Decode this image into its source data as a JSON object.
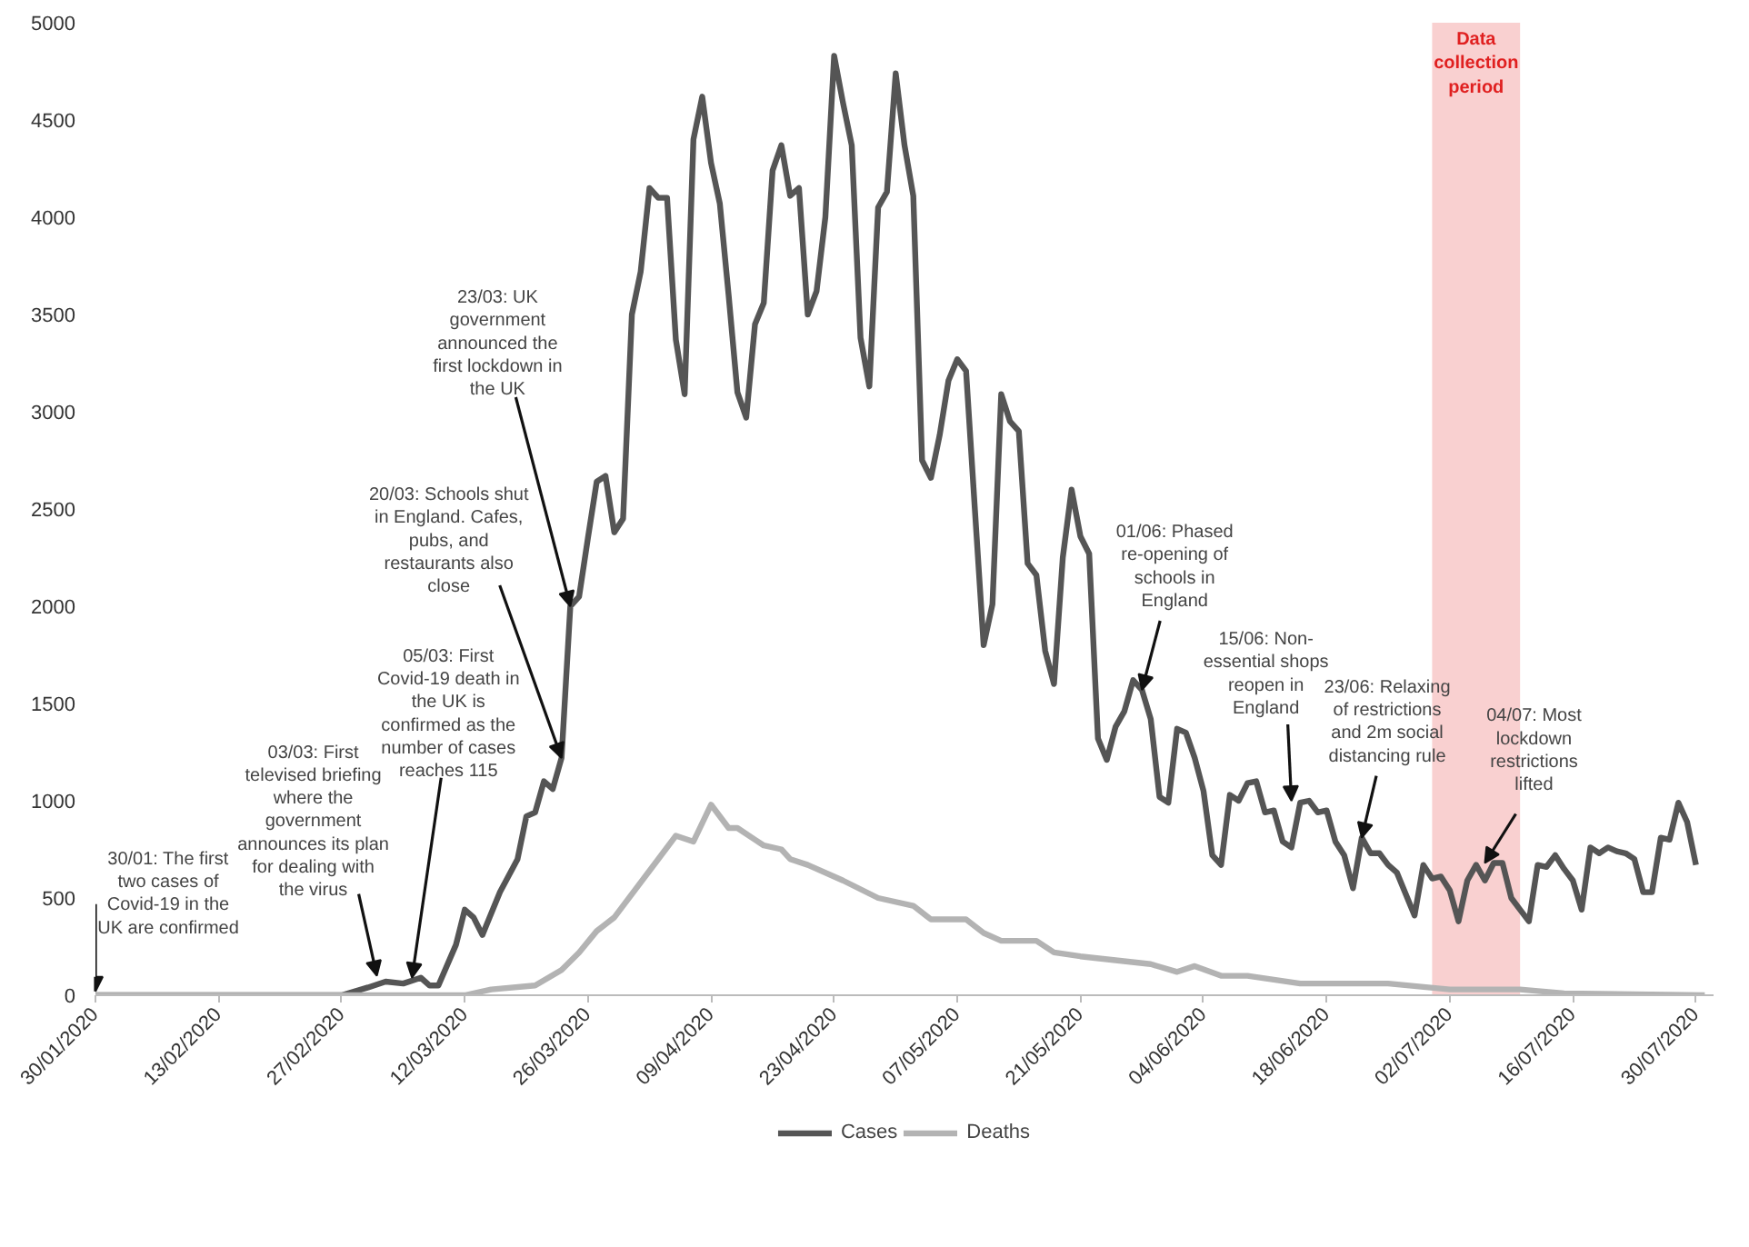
{
  "chart_data": {
    "type": "line",
    "xlim": [
      "2020-01-30",
      "2020-08-01"
    ],
    "ylim": [
      0,
      5000
    ],
    "xticks": [
      {
        "value": "2020-01-30",
        "label": "30/01/2020"
      },
      {
        "value": "2020-02-13",
        "label": "13/02/2020"
      },
      {
        "value": "2020-02-27",
        "label": "27/02/2020"
      },
      {
        "value": "2020-03-12",
        "label": "12/03/2020"
      },
      {
        "value": "2020-03-26",
        "label": "26/03/2020"
      },
      {
        "value": "2020-04-09",
        "label": "09/04/2020"
      },
      {
        "value": "2020-04-23",
        "label": "23/04/2020"
      },
      {
        "value": "2020-05-07",
        "label": "07/05/2020"
      },
      {
        "value": "2020-05-21",
        "label": "21/05/2020"
      },
      {
        "value": "2020-06-04",
        "label": "04/06/2020"
      },
      {
        "value": "2020-06-18",
        "label": "18/06/2020"
      },
      {
        "value": "2020-07-02",
        "label": "02/07/2020"
      },
      {
        "value": "2020-07-16",
        "label": "16/07/2020"
      },
      {
        "value": "2020-07-30",
        "label": "30/07/2020"
      }
    ],
    "yticks": [
      0,
      500,
      1000,
      1500,
      2000,
      2500,
      3000,
      3500,
      4000,
      4500,
      5000
    ],
    "grid": false,
    "legend": "bottom",
    "marker": "none",
    "line_style": "solid",
    "series": [
      {
        "name": "Cases",
        "color": "#555555",
        "x": [
          "2020-01-30",
          "2020-02-27",
          "2020-03-01",
          "2020-03-03",
          "2020-03-05",
          "2020-03-07",
          "2020-03-08",
          "2020-03-09",
          "2020-03-11",
          "2020-03-12",
          "2020-03-13",
          "2020-03-14",
          "2020-03-16",
          "2020-03-18",
          "2020-03-19",
          "2020-03-20",
          "2020-03-21",
          "2020-03-22",
          "2020-03-23",
          "2020-03-24",
          "2020-03-25",
          "2020-03-26",
          "2020-03-27",
          "2020-03-28",
          "2020-03-29",
          "2020-03-30",
          "2020-03-31",
          "2020-04-01",
          "2020-04-02",
          "2020-04-03",
          "2020-04-04",
          "2020-04-05",
          "2020-04-06",
          "2020-04-07",
          "2020-04-08",
          "2020-04-09",
          "2020-04-10",
          "2020-04-11",
          "2020-04-12",
          "2020-04-13",
          "2020-04-14",
          "2020-04-15",
          "2020-04-16",
          "2020-04-17",
          "2020-04-18",
          "2020-04-19",
          "2020-04-20",
          "2020-04-21",
          "2020-04-22",
          "2020-04-23",
          "2020-04-24",
          "2020-04-25",
          "2020-04-26",
          "2020-04-27",
          "2020-04-28",
          "2020-04-29",
          "2020-04-30",
          "2020-05-01",
          "2020-05-02",
          "2020-05-03",
          "2020-05-04",
          "2020-05-05",
          "2020-05-06",
          "2020-05-07",
          "2020-05-08",
          "2020-05-09",
          "2020-05-10",
          "2020-05-11",
          "2020-05-12",
          "2020-05-13",
          "2020-05-14",
          "2020-05-15",
          "2020-05-16",
          "2020-05-17",
          "2020-05-18",
          "2020-05-19",
          "2020-05-20",
          "2020-05-21",
          "2020-05-22",
          "2020-05-23",
          "2020-05-24",
          "2020-05-25",
          "2020-05-26",
          "2020-05-27",
          "2020-05-28",
          "2020-05-29",
          "2020-05-30",
          "2020-05-31",
          "2020-06-01",
          "2020-06-02",
          "2020-06-03",
          "2020-06-04",
          "2020-06-05",
          "2020-06-06",
          "2020-06-07",
          "2020-06-08",
          "2020-06-09",
          "2020-06-10",
          "2020-06-11",
          "2020-06-12",
          "2020-06-13",
          "2020-06-14",
          "2020-06-15",
          "2020-06-16",
          "2020-06-17",
          "2020-06-18",
          "2020-06-19",
          "2020-06-20",
          "2020-06-21",
          "2020-06-22",
          "2020-06-23",
          "2020-06-24",
          "2020-06-25",
          "2020-06-26",
          "2020-06-27",
          "2020-06-28",
          "2020-06-29",
          "2020-06-30",
          "2020-07-01",
          "2020-07-02",
          "2020-07-03",
          "2020-07-04",
          "2020-07-05",
          "2020-07-06",
          "2020-07-07",
          "2020-07-08",
          "2020-07-09",
          "2020-07-10",
          "2020-07-11",
          "2020-07-12",
          "2020-07-13",
          "2020-07-14",
          "2020-07-15",
          "2020-07-16",
          "2020-07-17",
          "2020-07-18",
          "2020-07-19",
          "2020-07-20",
          "2020-07-21",
          "2020-07-22",
          "2020-07-23",
          "2020-07-24",
          "2020-07-25",
          "2020-07-26",
          "2020-07-27",
          "2020-07-28",
          "2020-07-29",
          "2020-07-30"
        ],
        "values": [
          0,
          0,
          40,
          70,
          60,
          90,
          50,
          50,
          260,
          440,
          400,
          310,
          530,
          700,
          920,
          940,
          1100,
          1060,
          1220,
          2000,
          2050,
          2350,
          2640,
          2670,
          2380,
          2450,
          3500,
          3720,
          4150,
          4100,
          4100,
          3370,
          3090,
          4400,
          4620,
          4280,
          4070,
          3600,
          3100,
          2970,
          3450,
          3560,
          4240,
          4370,
          4110,
          4150,
          3500,
          3620,
          4000,
          4830,
          4590,
          4370,
          3380,
          3130,
          4050,
          4130,
          4740,
          4370,
          4110,
          2750,
          2660,
          2880,
          3160,
          3270,
          3210,
          2500,
          1800,
          2010,
          3090,
          2950,
          2900,
          2220,
          2160,
          1770,
          1600,
          2250,
          2600,
          2360,
          2270,
          1320,
          1210,
          1380,
          1460,
          1620,
          1570,
          1420,
          1020,
          990,
          1370,
          1350,
          1220,
          1050,
          720,
          670,
          1030,
          1000,
          1090,
          1100,
          940,
          950,
          790,
          760,
          990,
          1000,
          940,
          950,
          790,
          720,
          550,
          810,
          730,
          730,
          670,
          630,
          520,
          410,
          670,
          600,
          610,
          540,
          380,
          590,
          670,
          590,
          680,
          680,
          500,
          440,
          380,
          670,
          660,
          720,
          650,
          590,
          440,
          760,
          730,
          760,
          740,
          730,
          700,
          530,
          530,
          810,
          800,
          990,
          890,
          670
        ]
      },
      {
        "name": "Deaths",
        "color": "#b3b3b3",
        "x": [
          "2020-01-30",
          "2020-03-12",
          "2020-03-15",
          "2020-03-20",
          "2020-03-23",
          "2020-03-25",
          "2020-03-27",
          "2020-03-29",
          "2020-04-03",
          "2020-04-05",
          "2020-04-07",
          "2020-04-09",
          "2020-04-11",
          "2020-04-12",
          "2020-04-14",
          "2020-04-15",
          "2020-04-17",
          "2020-04-18",
          "2020-04-20",
          "2020-04-24",
          "2020-04-28",
          "2020-05-02",
          "2020-05-04",
          "2020-05-08",
          "2020-05-10",
          "2020-05-12",
          "2020-05-16",
          "2020-05-18",
          "2020-05-21",
          "2020-05-25",
          "2020-05-29",
          "2020-06-01",
          "2020-06-03",
          "2020-06-06",
          "2020-06-09",
          "2020-06-15",
          "2020-06-25",
          "2020-07-02",
          "2020-07-10",
          "2020-07-15",
          "2020-07-31"
        ],
        "values": [
          0,
          0,
          30,
          50,
          130,
          220,
          330,
          400,
          700,
          820,
          790,
          980,
          860,
          860,
          800,
          770,
          750,
          700,
          670,
          590,
          500,
          460,
          390,
          390,
          320,
          280,
          280,
          220,
          200,
          180,
          160,
          120,
          150,
          100,
          100,
          60,
          60,
          30,
          30,
          10,
          0
        ]
      }
    ],
    "bands": [
      {
        "axis": "x",
        "from": "2020-06-30",
        "to": "2020-07-10",
        "label": "Data collection period",
        "color": "#f7c4c4"
      }
    ],
    "annotations": [
      {
        "text": "30/01: The first two cases of Covid-19 in the UK are confirmed",
        "x": "2020-01-30",
        "y": 20
      },
      {
        "text": "03/03: First televised briefing where the government announces its plan for dealing with the virus",
        "x": "2020-03-02",
        "y": 100
      },
      {
        "text": "05/03: First Covid-19 death in the UK is confirmed as the number of cases reaches 115",
        "x": "2020-03-06",
        "y": 90
      },
      {
        "text": "20/03: Schools shut in England. Cafes, pubs, and restaurants also close",
        "x": "2020-03-23",
        "y": 1220
      },
      {
        "text": "23/03: UK government announced the first lockdown in the UK",
        "x": "2020-03-24",
        "y": 2000
      },
      {
        "text": "01/06: Phased re-opening of schools in England",
        "x": "2020-05-28",
        "y": 1570
      },
      {
        "text": "15/06: Non-essential shops reopen in England",
        "x": "2020-06-14",
        "y": 1000
      },
      {
        "text": "23/06: Relaxing of restrictions and 2m social distancing rule",
        "x": "2020-06-22",
        "y": 810
      },
      {
        "text": "04/07: Most lockdown restrictions lifted",
        "x": "2020-07-06",
        "y": 680
      }
    ]
  }
}
